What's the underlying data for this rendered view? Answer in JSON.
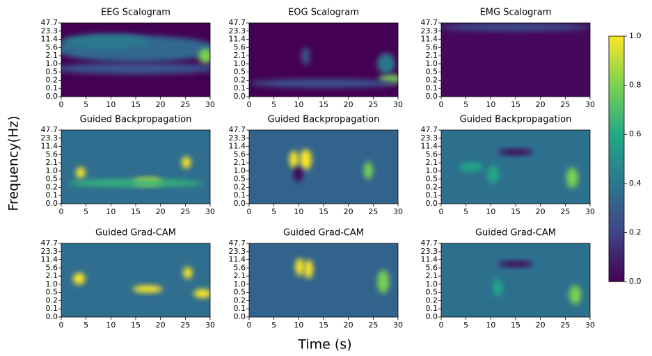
{
  "xlabel": "Time (s)",
  "ylabel": "Frequency(Hz)",
  "colorbar": {
    "lim": [
      0,
      1
    ],
    "ticks": [
      {
        "value": 0,
        "label": "0.0"
      },
      {
        "value": 0.2,
        "label": "0.2"
      },
      {
        "value": 0.4,
        "label": "0.4"
      },
      {
        "value": 0.6,
        "label": "0.6"
      },
      {
        "value": 0.8,
        "label": "0.8"
      },
      {
        "value": 1,
        "label": "1.0"
      }
    ],
    "colors": [
      "#440154",
      "#414487",
      "#2a788e",
      "#22a884",
      "#7ad151",
      "#fde725"
    ]
  },
  "chart_data": [
    {
      "type": "heatmap",
      "title": "EEG Scalogram",
      "xlim": [
        0,
        30
      ],
      "xticks": [
        0,
        5,
        10,
        15,
        20,
        25,
        30
      ],
      "ycategories": [
        "0.0",
        "0.1",
        "0.2",
        "0.5",
        "1.0",
        "2.1",
        "5.6",
        "11.4",
        "23.3",
        "47.7"
      ]
    },
    {
      "type": "heatmap",
      "title": "EOG Scalogram",
      "xlim": [
        0,
        30
      ],
      "xticks": [
        0,
        5,
        10,
        15,
        20,
        25,
        30
      ],
      "ycategories": [
        "0.0",
        "0.1",
        "0.2",
        "0.5",
        "1.0",
        "2.1",
        "5.6",
        "11.4",
        "23.3",
        "47.7"
      ]
    },
    {
      "type": "heatmap",
      "title": "EMG Scalogram",
      "xlim": [
        0,
        30
      ],
      "xticks": [
        0,
        5,
        10,
        15,
        20,
        25,
        30
      ],
      "ycategories": [
        "0.0",
        "0.1",
        "0.2",
        "0.5",
        "1.0",
        "2.1",
        "5.6",
        "11.4",
        "23.3",
        "47.7"
      ]
    },
    {
      "type": "heatmap",
      "title": "Guided Backpropagation",
      "xlim": [
        0,
        30
      ],
      "xticks": [
        0,
        5,
        10,
        15,
        20,
        25,
        30
      ],
      "ycategories": [
        "0.0",
        "0.1",
        "0.2",
        "0.5",
        "1.0",
        "2.1",
        "5.6",
        "11.4",
        "23.3",
        "47.7"
      ]
    },
    {
      "type": "heatmap",
      "title": "Guided Backpropagation",
      "xlim": [
        0,
        30
      ],
      "xticks": [
        0,
        5,
        10,
        15,
        20,
        25,
        30
      ],
      "ycategories": [
        "0.0",
        "0.1",
        "0.2",
        "0.5",
        "1.0",
        "2.1",
        "5.6",
        "11.4",
        "23.3",
        "47.7"
      ]
    },
    {
      "type": "heatmap",
      "title": "Guided Backpropagation",
      "xlim": [
        0,
        30
      ],
      "xticks": [
        0,
        5,
        10,
        15,
        20,
        25,
        30
      ],
      "ycategories": [
        "0.0",
        "0.1",
        "0.2",
        "0.5",
        "1.0",
        "2.1",
        "5.6",
        "11.4",
        "23.3",
        "47.7"
      ]
    },
    {
      "type": "heatmap",
      "title": "Guided Grad-CAM",
      "xlim": [
        0,
        30
      ],
      "xticks": [
        0,
        5,
        10,
        15,
        20,
        25,
        30
      ],
      "ycategories": [
        "0.0",
        "0.1",
        "0.2",
        "0.5",
        "1.0",
        "2.1",
        "5.6",
        "11.4",
        "23.3",
        "47.7"
      ]
    },
    {
      "type": "heatmap",
      "title": "Guided Grad-CAM",
      "xlim": [
        0,
        30
      ],
      "xticks": [
        0,
        5,
        10,
        15,
        20,
        25,
        30
      ],
      "ycategories": [
        "0.0",
        "0.1",
        "0.2",
        "0.5",
        "1.0",
        "2.1",
        "5.6",
        "11.4",
        "23.3",
        "47.7"
      ]
    },
    {
      "type": "heatmap",
      "title": "Guided Grad-CAM",
      "xlim": [
        0,
        30
      ],
      "xticks": [
        0,
        5,
        10,
        15,
        20,
        25,
        30
      ],
      "ycategories": [
        "0.0",
        "0.1",
        "0.2",
        "0.5",
        "1.0",
        "2.1",
        "5.6",
        "11.4",
        "23.3",
        "47.7"
      ]
    }
  ]
}
